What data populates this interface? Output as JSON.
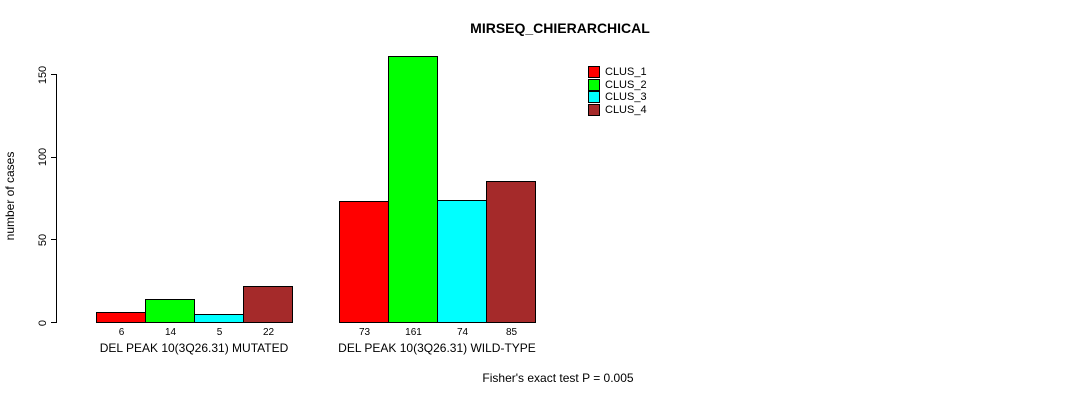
{
  "chart_data": {
    "type": "bar",
    "title": "MIRSEQ_CHIERARCHICAL",
    "ylabel": "number of cases",
    "xlabel": "",
    "categories": [
      "DEL PEAK 10(3Q26.31) MUTATED",
      "DEL PEAK 10(3Q26.31) WILD-TYPE"
    ],
    "series": [
      {
        "name": "CLUS_1",
        "color": "#ff0000",
        "values": [
          6,
          73
        ]
      },
      {
        "name": "CLUS_2",
        "color": "#00ff00",
        "values": [
          14,
          161
        ]
      },
      {
        "name": "CLUS_3",
        "color": "#00ffff",
        "values": [
          5,
          74
        ]
      },
      {
        "name": "CLUS_4",
        "color": "#a52a2a",
        "values": [
          22,
          85
        ]
      }
    ],
    "yticks": [
      0,
      50,
      100,
      150
    ],
    "ylim": [
      0,
      165
    ],
    "grid": false,
    "legend_position": "top-right",
    "bar_border_color": "#000000",
    "background_color": "#ffffff",
    "annotation": "Fisher's exact test P = 0.005"
  }
}
